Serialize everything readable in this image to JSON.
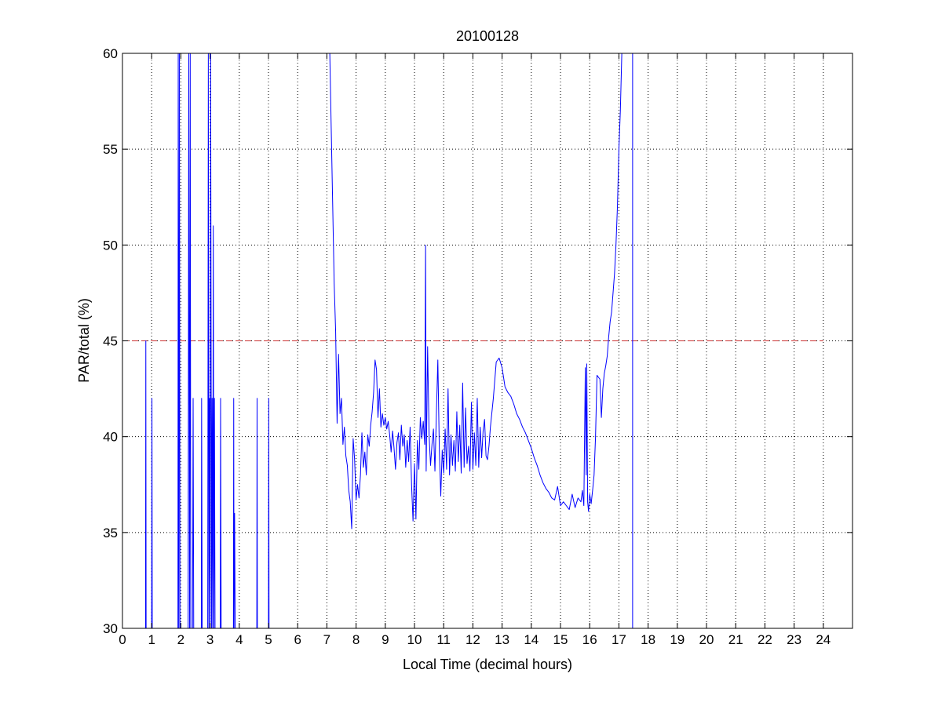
{
  "chart_data": {
    "type": "line",
    "title": "20100128",
    "xlabel": "Local Time (decimal hours)",
    "ylabel": "PAR/total (%)",
    "xlim": [
      0,
      25
    ],
    "ylim": [
      30,
      60
    ],
    "xticks": [
      0,
      1,
      2,
      3,
      4,
      5,
      6,
      7,
      8,
      9,
      10,
      11,
      12,
      13,
      14,
      15,
      16,
      17,
      18,
      19,
      20,
      21,
      22,
      23,
      24
    ],
    "yticks": [
      30,
      35,
      40,
      45,
      50,
      55,
      60
    ],
    "grid": true,
    "series": [
      {
        "color": "#0000ff",
        "points": [
          [
            0.79,
            30
          ],
          [
            0.8,
            45
          ],
          [
            0.81,
            30
          ],
          [
            1.0,
            30
          ],
          [
            1.01,
            42
          ],
          [
            1.02,
            30
          ],
          [
            1.9,
            30
          ],
          [
            1.91,
            60
          ],
          [
            1.93,
            30
          ],
          [
            1.95,
            60
          ],
          [
            1.97,
            30
          ],
          [
            2.25,
            30
          ],
          [
            2.27,
            60
          ],
          [
            2.3,
            30
          ],
          [
            2.32,
            60
          ],
          [
            2.34,
            30
          ],
          [
            2.4,
            30
          ],
          [
            2.42,
            42
          ],
          [
            2.44,
            30
          ],
          [
            2.7,
            30
          ],
          [
            2.71,
            42
          ],
          [
            2.73,
            30
          ],
          [
            2.92,
            30
          ],
          [
            2.94,
            60
          ],
          [
            2.96,
            30
          ],
          [
            2.98,
            42
          ],
          [
            3.0,
            30
          ],
          [
            3.02,
            60
          ],
          [
            3.05,
            30
          ],
          [
            3.07,
            42
          ],
          [
            3.09,
            30
          ],
          [
            3.11,
            51
          ],
          [
            3.13,
            30
          ],
          [
            3.15,
            42
          ],
          [
            3.17,
            30
          ],
          [
            3.35,
            30
          ],
          [
            3.36,
            42
          ],
          [
            3.38,
            30
          ],
          [
            3.8,
            30
          ],
          [
            3.81,
            42
          ],
          [
            3.82,
            30
          ],
          [
            3.84,
            36
          ],
          [
            3.86,
            30
          ],
          [
            4.6,
            30
          ],
          [
            4.61,
            42
          ],
          [
            4.62,
            30
          ],
          [
            5.0,
            30
          ],
          [
            5.01,
            42
          ],
          [
            5.02,
            30
          ]
        ]
      },
      {
        "color": "#0000ff",
        "points": [
          [
            7.1,
            60
          ],
          [
            7.15,
            56
          ],
          [
            7.2,
            52
          ],
          [
            7.25,
            48
          ],
          [
            7.3,
            45.5
          ],
          [
            7.35,
            40.7
          ],
          [
            7.4,
            44.3
          ],
          [
            7.45,
            41.2
          ],
          [
            7.5,
            42
          ],
          [
            7.55,
            39.6
          ],
          [
            7.6,
            40.5
          ],
          [
            7.65,
            39
          ],
          [
            7.7,
            38.5
          ],
          [
            7.75,
            37.2
          ],
          [
            7.8,
            36.6
          ],
          [
            7.85,
            35.2
          ],
          [
            7.9,
            39.9
          ],
          [
            7.95,
            38.8
          ],
          [
            8.0,
            36.7
          ],
          [
            8.05,
            37.5
          ],
          [
            8.1,
            36.8
          ],
          [
            8.15,
            38
          ],
          [
            8.2,
            40.2
          ],
          [
            8.25,
            38.4
          ],
          [
            8.3,
            39.2
          ],
          [
            8.35,
            38
          ],
          [
            8.4,
            40.1
          ],
          [
            8.45,
            39.5
          ],
          [
            8.5,
            40.6
          ],
          [
            8.55,
            41.3
          ],
          [
            8.6,
            42.3
          ],
          [
            8.65,
            44
          ],
          [
            8.7,
            43.5
          ],
          [
            8.75,
            41
          ],
          [
            8.8,
            42.5
          ],
          [
            8.85,
            40.5
          ],
          [
            8.9,
            41.2
          ],
          [
            8.95,
            40.6
          ],
          [
            9.0,
            41
          ],
          [
            9.05,
            40.4
          ],
          [
            9.1,
            40.8
          ],
          [
            9.15,
            40.1
          ],
          [
            9.2,
            39.2
          ],
          [
            9.25,
            40.3
          ],
          [
            9.3,
            39.4
          ],
          [
            9.35,
            38.3
          ],
          [
            9.4,
            39.7
          ],
          [
            9.45,
            40.2
          ],
          [
            9.5,
            38.8
          ],
          [
            9.55,
            40.6
          ],
          [
            9.6,
            39.5
          ],
          [
            9.65,
            40.1
          ],
          [
            9.7,
            38.4
          ],
          [
            9.75,
            39.8
          ],
          [
            9.8,
            38.7
          ],
          [
            9.85,
            40.5
          ],
          [
            9.9,
            37.5
          ],
          [
            9.95,
            35.6
          ],
          [
            10.0,
            38.6
          ],
          [
            10.05,
            35.7
          ],
          [
            10.1,
            39.8
          ],
          [
            10.15,
            38.3
          ],
          [
            10.2,
            41
          ],
          [
            10.25,
            39.9
          ],
          [
            10.3,
            40.8
          ],
          [
            10.35,
            39.6
          ],
          [
            10.38,
            50
          ],
          [
            10.4,
            38.2
          ],
          [
            10.45,
            44.7
          ],
          [
            10.5,
            40.1
          ],
          [
            10.55,
            38.5
          ],
          [
            10.6,
            39.6
          ],
          [
            10.65,
            40.4
          ],
          [
            10.7,
            38.2
          ],
          [
            10.75,
            41.2
          ],
          [
            10.8,
            44
          ],
          [
            10.85,
            39.4
          ],
          [
            10.9,
            36.9
          ],
          [
            10.95,
            39.3
          ],
          [
            11.0,
            38.1
          ],
          [
            11.05,
            40.4
          ],
          [
            11.1,
            38.3
          ],
          [
            11.15,
            42.5
          ],
          [
            11.2,
            38
          ],
          [
            11.25,
            40.1
          ],
          [
            11.3,
            38.5
          ],
          [
            11.35,
            39.8
          ],
          [
            11.4,
            38.2
          ],
          [
            11.45,
            41.3
          ],
          [
            11.5,
            38.7
          ],
          [
            11.55,
            40.6
          ],
          [
            11.6,
            38.1
          ],
          [
            11.65,
            42.8
          ],
          [
            11.7,
            38.4
          ],
          [
            11.75,
            41.5
          ],
          [
            11.8,
            38.6
          ],
          [
            11.85,
            39.5
          ],
          [
            11.9,
            38.2
          ],
          [
            11.95,
            41.8
          ],
          [
            12.0,
            38.3
          ],
          [
            12.05,
            40.2
          ],
          [
            12.1,
            38.5
          ],
          [
            12.15,
            42
          ],
          [
            12.2,
            38.4
          ],
          [
            12.25,
            40.5
          ],
          [
            12.3,
            38.9
          ],
          [
            12.35,
            40.3
          ],
          [
            12.4,
            40.9
          ],
          [
            12.45,
            39
          ],
          [
            12.5,
            38.8
          ],
          [
            12.55,
            39.5
          ],
          [
            12.6,
            40.5
          ],
          [
            12.7,
            42
          ],
          [
            12.8,
            43.9
          ],
          [
            12.9,
            44.1
          ],
          [
            13.0,
            43.6
          ],
          [
            13.1,
            42.6
          ],
          [
            13.2,
            42.3
          ],
          [
            13.3,
            42.1
          ],
          [
            13.4,
            41.7
          ],
          [
            13.5,
            41.2
          ],
          [
            13.6,
            40.9
          ],
          [
            13.7,
            40.5
          ],
          [
            13.8,
            40.2
          ],
          [
            13.9,
            39.8
          ],
          [
            14.0,
            39.4
          ],
          [
            14.1,
            38.9
          ],
          [
            14.2,
            38.5
          ],
          [
            14.3,
            38
          ],
          [
            14.4,
            37.6
          ],
          [
            14.5,
            37.3
          ],
          [
            14.6,
            37.1
          ],
          [
            14.7,
            36.8
          ],
          [
            14.8,
            36.7
          ],
          [
            14.9,
            37.4
          ],
          [
            15.0,
            36.4
          ],
          [
            15.1,
            36.6
          ],
          [
            15.2,
            36.4
          ],
          [
            15.3,
            36.2
          ],
          [
            15.4,
            37
          ],
          [
            15.5,
            36.3
          ],
          [
            15.6,
            36.8
          ],
          [
            15.7,
            36.6
          ],
          [
            15.75,
            37.2
          ],
          [
            15.8,
            36.4
          ],
          [
            15.85,
            43.6
          ],
          [
            15.88,
            38
          ],
          [
            15.9,
            43.8
          ],
          [
            15.93,
            36.6
          ],
          [
            15.96,
            36.1
          ],
          [
            16.0,
            37
          ],
          [
            16.05,
            36.5
          ],
          [
            16.1,
            37.2
          ],
          [
            16.15,
            38
          ],
          [
            16.2,
            40
          ],
          [
            16.25,
            43.2
          ],
          [
            16.3,
            43.1
          ],
          [
            16.35,
            43
          ],
          [
            16.4,
            41
          ],
          [
            16.45,
            42.5
          ],
          [
            16.5,
            43.3
          ],
          [
            16.55,
            43.7
          ],
          [
            16.6,
            44.2
          ],
          [
            16.65,
            45.2
          ],
          [
            16.7,
            46
          ],
          [
            16.75,
            46.5
          ],
          [
            16.8,
            47.5
          ],
          [
            16.85,
            48.5
          ],
          [
            16.9,
            50
          ],
          [
            16.95,
            52
          ],
          [
            17.0,
            55
          ],
          [
            17.05,
            57
          ],
          [
            17.1,
            60
          ]
        ]
      },
      {
        "color": "#0000ff",
        "points": [
          [
            17.47,
            30
          ],
          [
            17.47,
            60
          ]
        ]
      }
    ],
    "reference_line": {
      "y": 45,
      "x_range": [
        0,
        24
      ],
      "color": "#cc3333",
      "style": "dashed"
    }
  }
}
